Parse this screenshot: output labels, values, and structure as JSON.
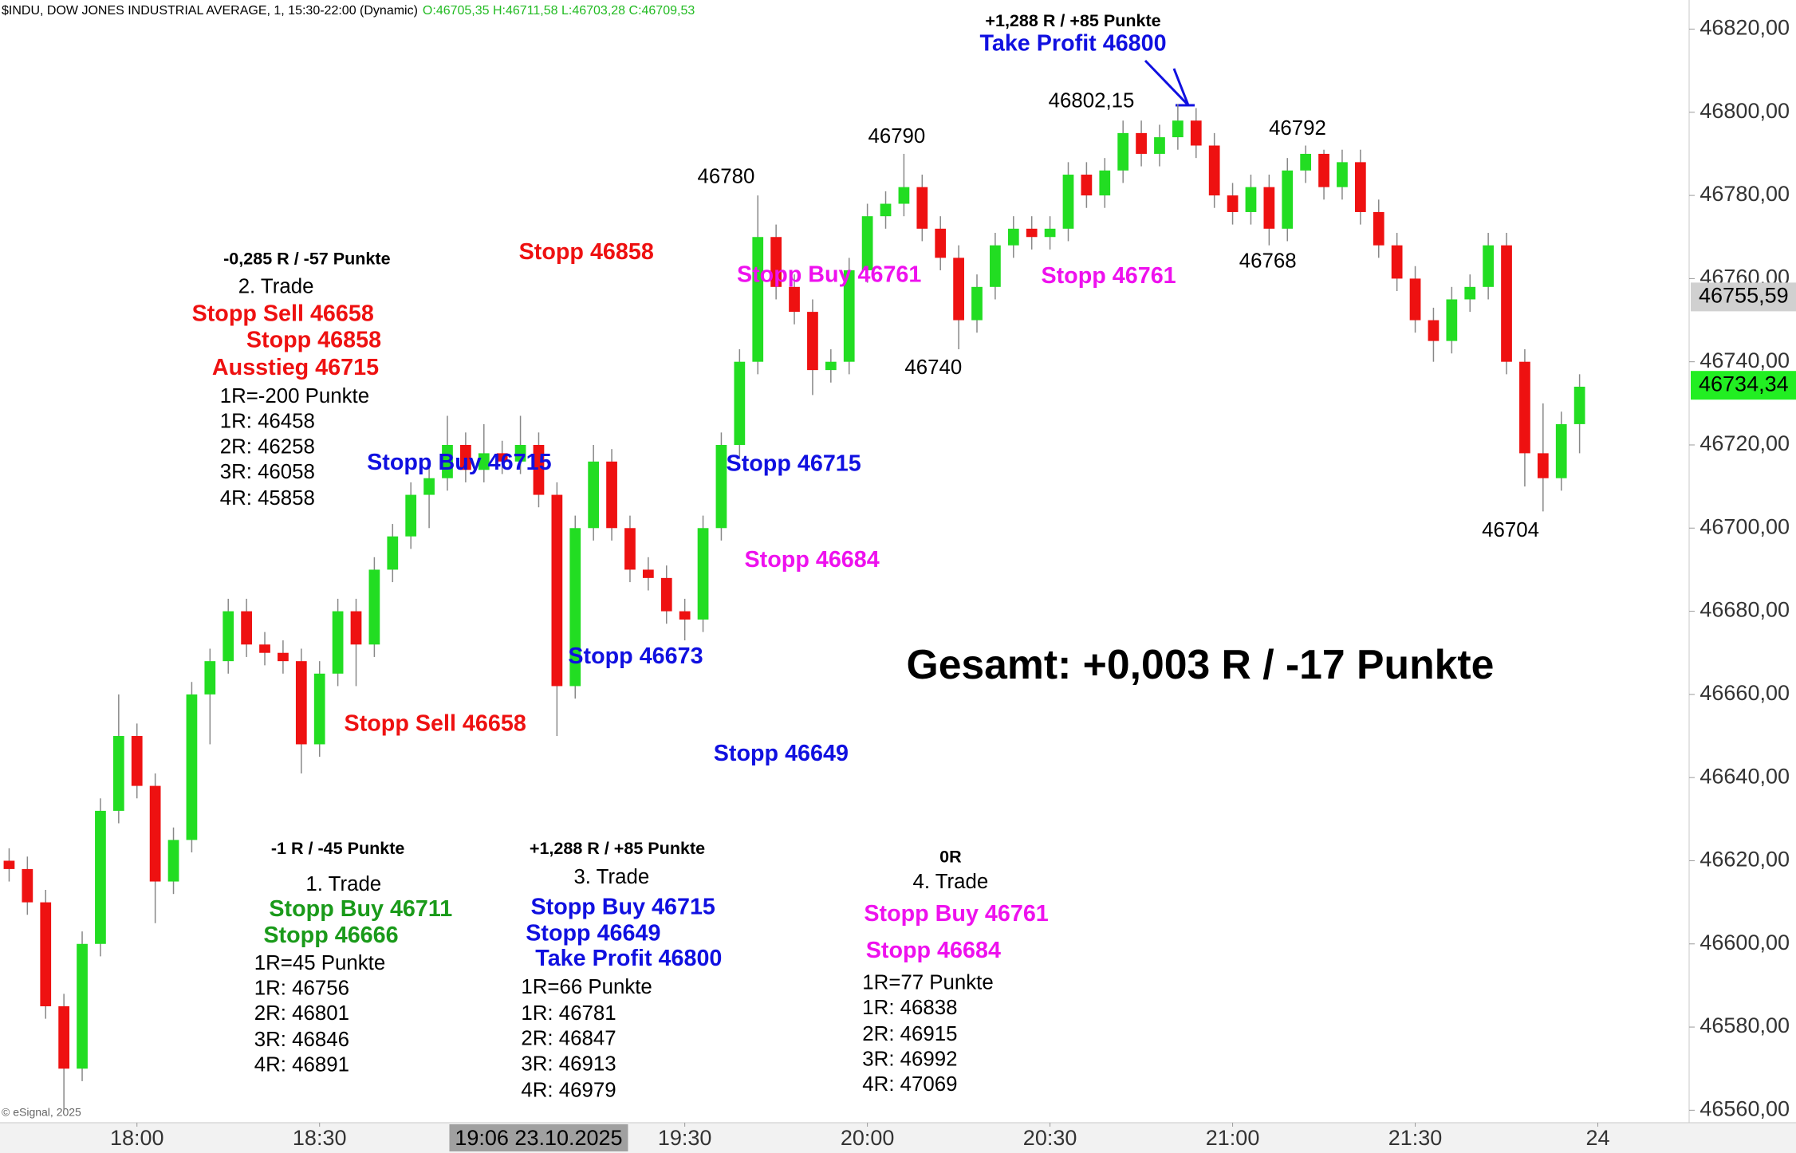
{
  "chart_data": {
    "type": "candlestick",
    "title": "$INDU, DOW JONES INDUSTRIAL AVERAGE, 1, 15:30-22:00 (Dynamic)",
    "ohlc": "O:46705,35 H:46711,58 L:46703,28 C:46709,53",
    "copyright": "© eSignal, 2025",
    "up_color": "#22dd22",
    "down_color": "#ee1111",
    "xlim": [
      1057.5,
      1335
    ],
    "ylim": [
      46557,
      46827
    ],
    "xticks": [
      {
        "value": 1080,
        "label": "18:00"
      },
      {
        "value": 1110,
        "label": "18:30"
      },
      {
        "value": 1170,
        "label": "19:30"
      },
      {
        "value": 1200,
        "label": "20:00"
      },
      {
        "value": 1230,
        "label": "20:30"
      },
      {
        "value": 1260,
        "label": "21:00"
      },
      {
        "value": 1290,
        "label": "21:30"
      },
      {
        "value": 1320,
        "label": "24"
      }
    ],
    "crosshair": {
      "value": 1146,
      "label": "19:06 23.10.2025"
    },
    "yticks": [
      {
        "value": 46560,
        "label": "46560,00"
      },
      {
        "value": 46580,
        "label": "46580,00"
      },
      {
        "value": 46600,
        "label": "46600,00"
      },
      {
        "value": 46620,
        "label": "46620,00"
      },
      {
        "value": 46640,
        "label": "46640,00"
      },
      {
        "value": 46660,
        "label": "46660,00"
      },
      {
        "value": 46680,
        "label": "46680,00"
      },
      {
        "value": 46700,
        "label": "46700,00"
      },
      {
        "value": 46720,
        "label": "46720,00"
      },
      {
        "value": 46740,
        "label": "46740,00"
      },
      {
        "value": 46760,
        "label": "46760,00"
      },
      {
        "value": 46780,
        "label": "46780,00"
      },
      {
        "value": 46800,
        "label": "46800,00"
      },
      {
        "value": 46820,
        "label": "46820,00"
      }
    ],
    "marker_price": {
      "value": 46755.59,
      "label": "46755,59"
    },
    "last_price": {
      "value": 46734.34,
      "label": "46734,34"
    },
    "x": [
      1059,
      1062,
      1065,
      1068,
      1071,
      1074,
      1077,
      1080,
      1083,
      1086,
      1089,
      1092,
      1095,
      1098,
      1101,
      1104,
      1107,
      1110,
      1113,
      1116,
      1119,
      1122,
      1125,
      1128,
      1131,
      1134,
      1137,
      1140,
      1143,
      1146,
      1149,
      1152,
      1155,
      1158,
      1161,
      1164,
      1167,
      1170,
      1173,
      1176,
      1179,
      1182,
      1185,
      1188,
      1191,
      1194,
      1197,
      1200,
      1203,
      1206,
      1209,
      1212,
      1215,
      1218,
      1221,
      1224,
      1227,
      1230,
      1233,
      1236,
      1239,
      1242,
      1245,
      1248,
      1251,
      1254,
      1257,
      1260,
      1263,
      1266,
      1269,
      1272,
      1275,
      1278,
      1281,
      1284,
      1287,
      1290,
      1293,
      1296,
      1299,
      1302,
      1305,
      1308,
      1311,
      1314,
      1317
    ],
    "open": [
      46620,
      46618,
      46610,
      46585,
      46570,
      46600,
      46632,
      46650,
      46638,
      46615,
      46625,
      46660,
      46668,
      46680,
      46672,
      46670,
      46668,
      46648,
      46665,
      46680,
      46672,
      46690,
      46698,
      46708,
      46712,
      46720,
      46714,
      46718,
      46716,
      46720,
      46708,
      46662,
      46700,
      46716,
      46700,
      46690,
      46688,
      46680,
      46678,
      46700,
      46720,
      46740,
      46770,
      46758,
      46752,
      46738,
      46740,
      46762,
      46775,
      46778,
      46782,
      46772,
      46765,
      46750,
      46758,
      46768,
      46772,
      46770,
      46772,
      46785,
      46780,
      46786,
      46795,
      46790,
      46794,
      46798,
      46792,
      46780,
      46776,
      46782,
      46772,
      46786,
      46790,
      46782,
      46788,
      46776,
      46768,
      46760,
      46750,
      46745,
      46755,
      46758,
      46768,
      46740,
      46718,
      46712,
      46725
    ],
    "high": [
      46623,
      46621,
      46613,
      46588,
      46603,
      46635,
      46660,
      46653,
      46641,
      46628,
      46663,
      46671,
      46683,
      46683,
      46675,
      46673,
      46671,
      46668,
      46683,
      46683,
      46693,
      46701,
      46711,
      46715,
      46727,
      46723,
      46725,
      46721,
      46727,
      46723,
      46711,
      46703,
      46720,
      46719,
      46703,
      46693,
      46691,
      46683,
      46703,
      46723,
      46743,
      46780,
      46773,
      46761,
      46755,
      46743,
      46765,
      46778,
      46781,
      46790,
      46785,
      46775,
      46768,
      46761,
      46771,
      46775,
      46775,
      46775,
      46788,
      46788,
      46789,
      46798,
      46798,
      46797,
      46802,
      46801,
      46795,
      46783,
      46785,
      46785,
      46789,
      46792,
      46791,
      46791,
      46791,
      46779,
      46771,
      46763,
      46753,
      46758,
      46761,
      46771,
      46771,
      46743,
      46730,
      46728,
      46737
    ],
    "low": [
      46615,
      46607,
      46582,
      46560,
      46567,
      46597,
      46629,
      46635,
      46605,
      46612,
      46622,
      46648,
      46665,
      46669,
      46667,
      46665,
      46641,
      46645,
      46662,
      46662,
      46669,
      46687,
      46695,
      46700,
      46709,
      46711,
      46711,
      46713,
      46713,
      46705,
      46650,
      46659,
      46697,
      46697,
      46687,
      46685,
      46677,
      46673,
      46675,
      46697,
      46717,
      46737,
      46755,
      46749,
      46732,
      46735,
      46737,
      46759,
      46772,
      46775,
      46769,
      46762,
      46743,
      46747,
      46755,
      46765,
      46767,
      46767,
      46769,
      46777,
      46777,
      46783,
      46787,
      46787,
      46791,
      46789,
      46777,
      46773,
      46773,
      46768,
      46769,
      46783,
      46779,
      46779,
      46773,
      46765,
      46757,
      46747,
      46740,
      46742,
      46752,
      46755,
      46737,
      46710,
      46704,
      46709,
      46718
    ],
    "close": [
      46618,
      46610,
      46585,
      46570,
      46600,
      46632,
      46650,
      46638,
      46615,
      46625,
      46660,
      46668,
      46680,
      46672,
      46670,
      46668,
      46648,
      46665,
      46680,
      46672,
      46690,
      46698,
      46708,
      46712,
      46720,
      46714,
      46718,
      46716,
      46720,
      46708,
      46662,
      46700,
      46716,
      46700,
      46690,
      46688,
      46680,
      46678,
      46700,
      46720,
      46740,
      46770,
      46758,
      46752,
      46738,
      46740,
      46762,
      46775,
      46778,
      46782,
      46772,
      46765,
      46750,
      46758,
      46768,
      46772,
      46770,
      46772,
      46785,
      46780,
      46786,
      46795,
      46790,
      46794,
      46798,
      46792,
      46780,
      46776,
      46782,
      46772,
      46786,
      46790,
      46782,
      46788,
      46776,
      46768,
      46760,
      46750,
      46745,
      46755,
      46758,
      46768,
      46740,
      46718,
      46712,
      46725,
      46734
    ],
    "annotations": [
      "+1,288 R / +85 Punkte",
      "Take Profit 46800",
      "46802,15",
      "46790",
      "46780",
      "46792",
      "46768",
      "46740",
      "46704",
      "-0,285 R / -57 Punkte",
      "2. Trade",
      "Stopp Sell 46658",
      "Stopp 46858",
      "Ausstieg 46715",
      "1R=-200 Punkte",
      "1R: 46458",
      "2R: 46258",
      "3R: 46058",
      "4R: 45858",
      "Stopp 46858",
      "Stopp Buy 46761",
      "Stopp 46761",
      "Stopp Buy 46715",
      "Stopp 46715",
      "Stopp 46684",
      "Stopp 46673",
      "Stopp Sell 46658",
      "Stopp 46649",
      "Gesamt: +0,003 R / -17 Punkte",
      "-1 R / -45 Punkte",
      "1. Trade",
      "Stopp Buy 46711",
      "Stopp 46666",
      "1R=45 Punkte",
      "1R: 46756",
      "2R: 46801",
      "3R: 46846",
      "4R: 46891",
      "+1,288 R / +85 Punkte",
      "3. Trade",
      "Stopp Buy 46715",
      "Stopp 46649",
      "Take Profit 46800",
      "1R=66 Punkte",
      "1R: 46781",
      "2R: 46847",
      "3R: 46913",
      "4R: 46979",
      "0R",
      "4. Trade",
      "Stopp Buy 46761",
      "Stopp 46684",
      "1R=77 Punkte",
      "1R: 46838",
      "2R: 46915",
      "3R: 46992",
      "4R: 47069"
    ]
  }
}
